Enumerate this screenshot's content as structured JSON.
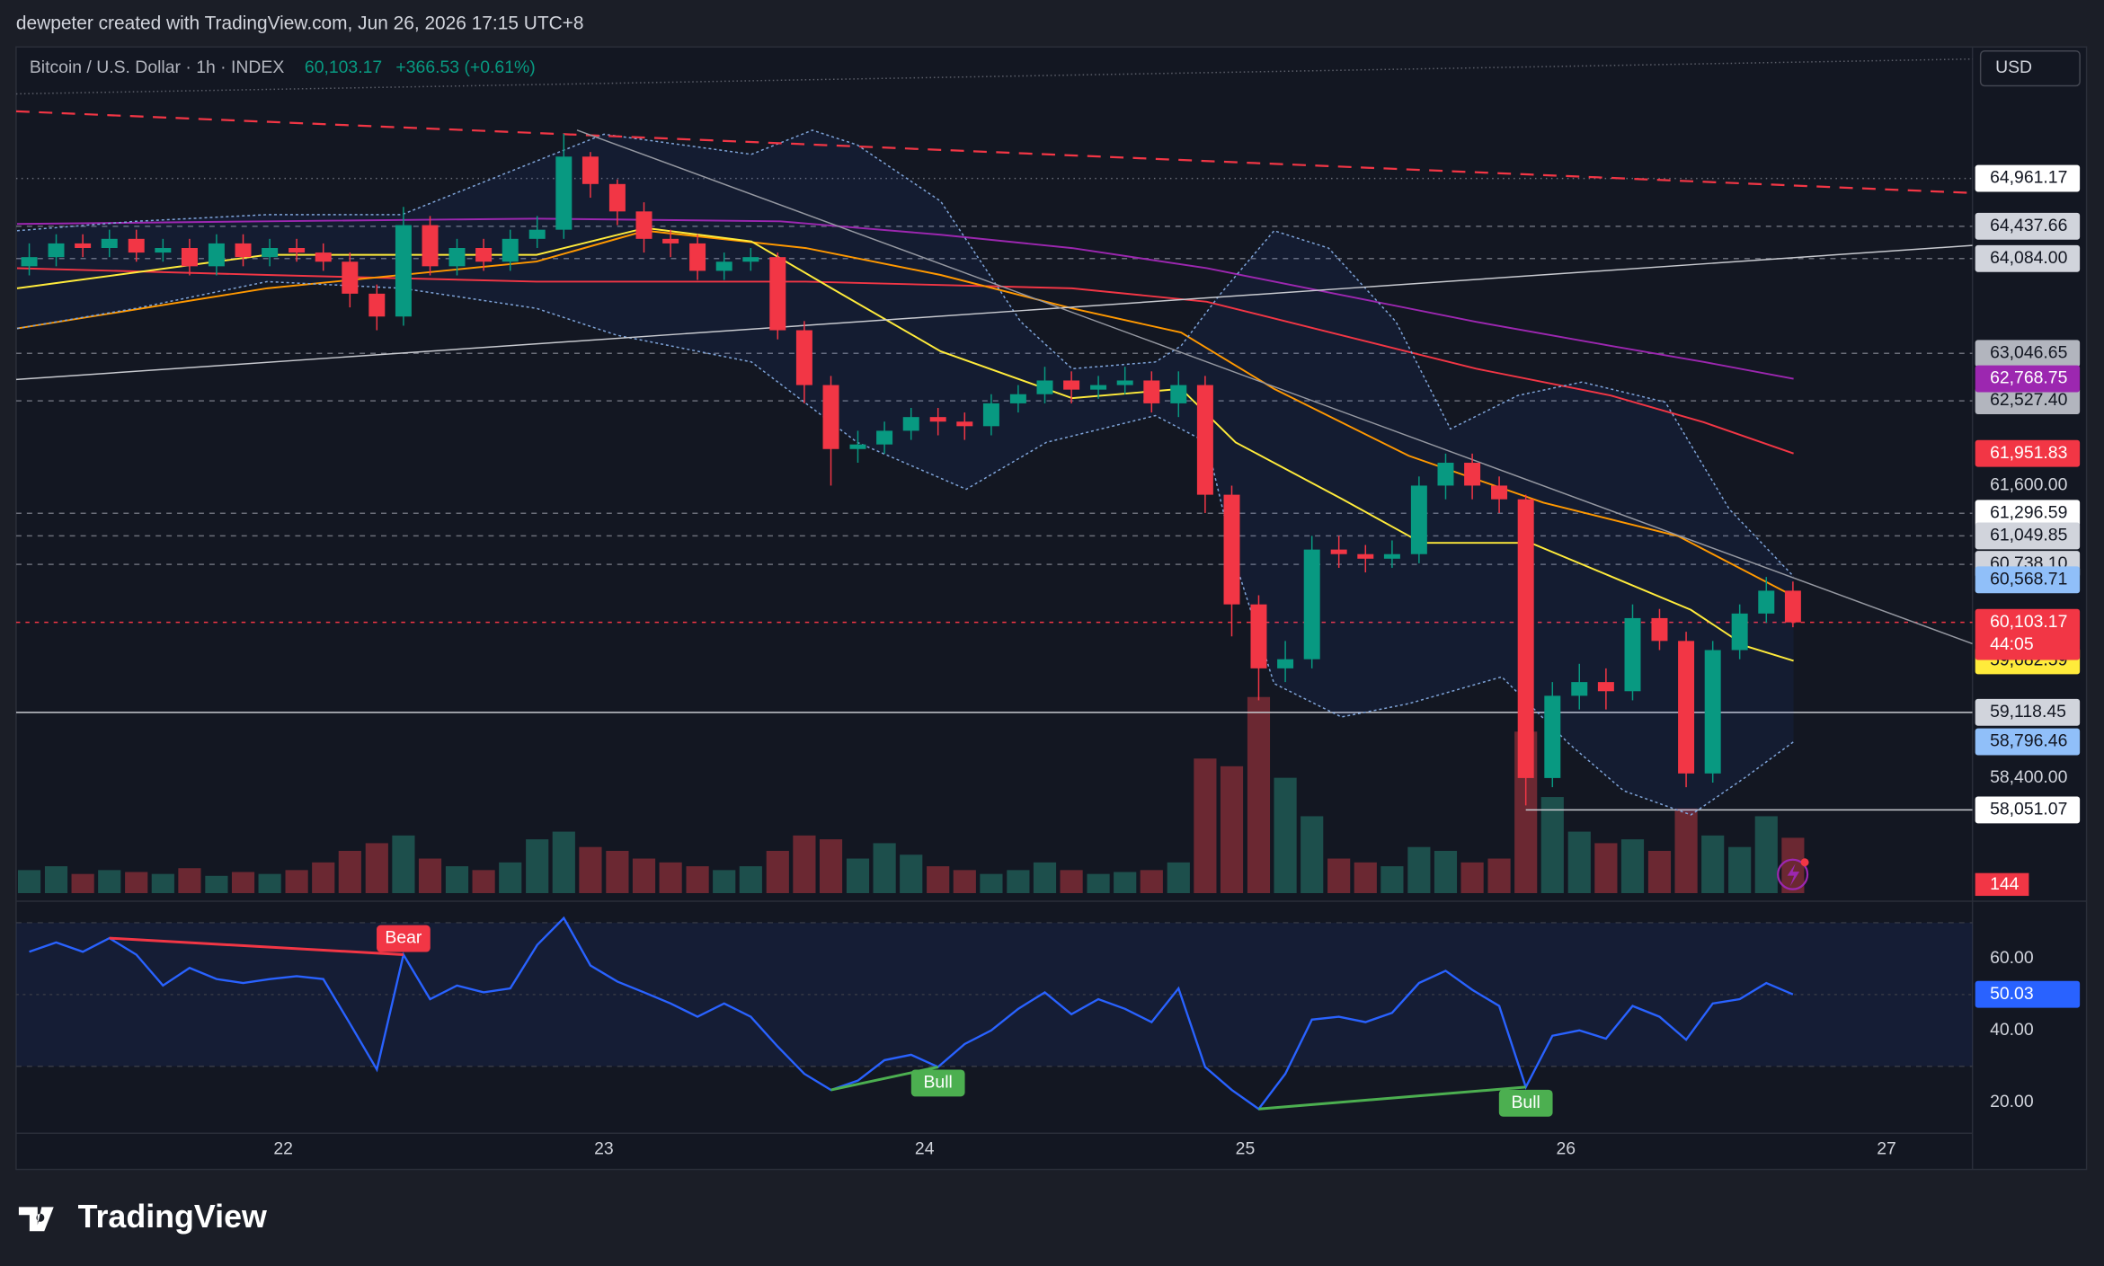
{
  "header": {
    "attribution": "dewpeter created with TradingView.com, Jun 26, 2026 17:15 UTC+8",
    "symbol": "Bitcoin / U.S. Dollar · 1h · INDEX",
    "last": "60,103.17",
    "change": "+366.53 (+0.61%)",
    "currency": "USD"
  },
  "footer": {
    "logo": "TradingView"
  },
  "chart_data": {
    "type": "candlestick",
    "x": [
      21.208,
      21.292,
      21.375,
      21.458,
      21.542,
      21.625,
      21.708,
      21.792,
      21.875,
      21.958,
      22.042,
      22.125,
      22.208,
      22.292,
      22.375,
      22.458,
      22.542,
      22.625,
      22.708,
      22.792,
      22.875,
      22.958,
      23.042,
      23.125,
      23.208,
      23.292,
      23.375,
      23.458,
      23.542,
      23.625,
      23.708,
      23.792,
      23.875,
      23.958,
      24.042,
      24.125,
      24.208,
      24.292,
      24.375,
      24.458,
      24.542,
      24.625,
      24.708,
      24.792,
      24.875,
      24.958,
      25.042,
      25.125,
      25.208,
      25.292,
      25.375,
      25.458,
      25.542,
      25.625,
      25.708,
      25.792,
      25.875,
      25.958,
      26.042,
      26.125,
      26.208,
      26.292,
      26.375,
      26.458,
      26.542,
      26.625,
      26.708
    ],
    "open": [
      64000,
      64100,
      64250,
      64200,
      64300,
      64150,
      64200,
      64000,
      64250,
      64100,
      64200,
      64150,
      64050,
      63700,
      63450,
      64450,
      64000,
      64200,
      64050,
      64300,
      64400,
      65200,
      64900,
      64600,
      64300,
      64250,
      63950,
      64050,
      64100,
      63300,
      62700,
      62000,
      62050,
      62200,
      62350,
      62300,
      62250,
      62500,
      62600,
      62750,
      62650,
      62700,
      62750,
      62500,
      62700,
      61500,
      60300,
      59600,
      59700,
      60900,
      60850,
      60800,
      60850,
      61600,
      61850,
      61600,
      61450,
      58400,
      59300,
      59450,
      59350,
      60150,
      59900,
      58450,
      59800,
      60200,
      60450
    ],
    "high": [
      64250,
      64350,
      64350,
      64400,
      64400,
      64300,
      64300,
      64350,
      64350,
      64300,
      64300,
      64250,
      64150,
      63800,
      64650,
      64550,
      64300,
      64300,
      64400,
      64550,
      65450,
      65250,
      64950,
      64700,
      64400,
      64350,
      64150,
      64200,
      64150,
      63400,
      62800,
      62200,
      62300,
      62450,
      62450,
      62400,
      62600,
      62700,
      62900,
      62850,
      62800,
      62900,
      62850,
      62850,
      62800,
      61600,
      60400,
      59900,
      61050,
      61050,
      60950,
      61000,
      61700,
      61950,
      61950,
      61700,
      61500,
      59450,
      59650,
      59600,
      60300,
      60250,
      60000,
      59900,
      60300,
      60600,
      60550
    ],
    "low": [
      63900,
      64000,
      64100,
      64100,
      64050,
      64050,
      63900,
      63900,
      64000,
      64000,
      64050,
      63950,
      63550,
      63300,
      63350,
      63900,
      63900,
      63950,
      63950,
      64200,
      64300,
      64750,
      64450,
      64150,
      64100,
      63850,
      63850,
      63950,
      63200,
      62500,
      61600,
      61850,
      61950,
      62100,
      62150,
      62100,
      62150,
      62400,
      62500,
      62500,
      62550,
      62600,
      62400,
      62350,
      61300,
      59950,
      59250,
      59450,
      59600,
      60700,
      60650,
      60700,
      60750,
      61450,
      61450,
      61300,
      58100,
      58300,
      59150,
      59150,
      59250,
      59800,
      58300,
      58350,
      59700,
      60100,
      60050
    ],
    "close": [
      64100,
      64250,
      64200,
      64300,
      64150,
      64200,
      64000,
      64250,
      64100,
      64200,
      64150,
      64050,
      63700,
      63450,
      64450,
      64000,
      64200,
      64050,
      64300,
      64400,
      65200,
      64900,
      64600,
      64300,
      64250,
      63950,
      64050,
      64100,
      63300,
      62700,
      62000,
      62050,
      62200,
      62350,
      62300,
      62250,
      62500,
      62600,
      62750,
      62650,
      62700,
      62750,
      62500,
      62700,
      61500,
      60300,
      59600,
      59700,
      60900,
      60850,
      60800,
      60850,
      61600,
      61850,
      61600,
      61450,
      58400,
      59300,
      59450,
      59350,
      60150,
      59900,
      58450,
      59800,
      60200,
      60450,
      60103.17
    ],
    "up_color": "#089981",
    "down_color": "#f23645",
    "xlim": [
      21.167,
      27.268
    ],
    "xticks": [
      22,
      23,
      24,
      25,
      26,
      27
    ],
    "ylim": [
      57140,
      66400
    ],
    "yticks": [
      {
        "value": 61600,
        "label": "61,600.00"
      },
      {
        "value": 58400,
        "label": "58,400.00"
      }
    ],
    "volume": {
      "values": [
        60,
        70,
        50,
        60,
        55,
        50,
        65,
        45,
        55,
        50,
        60,
        80,
        110,
        130,
        150,
        90,
        70,
        60,
        80,
        140,
        160,
        120,
        110,
        90,
        80,
        70,
        60,
        70,
        110,
        150,
        140,
        90,
        130,
        100,
        70,
        60,
        50,
        60,
        80,
        60,
        50,
        55,
        60,
        80,
        350,
        330,
        510,
        300,
        200,
        90,
        80,
        70,
        120,
        110,
        80,
        90,
        420,
        250,
        160,
        130,
        140,
        110,
        220,
        150,
        120,
        200,
        144
      ],
      "y2lim": [
        0,
        2200
      ],
      "up_color": "#1d4f4c",
      "down_color": "#6b2832"
    },
    "overlays": [
      {
        "color": "#9c27b0",
        "style": "solid",
        "x": [
          21.17,
          21.95,
          22.79,
          23.55,
          24.05,
          24.46,
          24.88,
          25.3,
          25.72,
          26.14,
          26.43,
          26.71
        ],
        "values": [
          64463,
          64492,
          64521,
          64492,
          64345,
          64199,
          63979,
          63686,
          63392,
          63129,
          62953,
          62768.75
        ]
      },
      {
        "color": "#f23645",
        "style": "solid",
        "x": [
          21.17,
          21.95,
          22.79,
          23.63,
          24.46,
          24.88,
          25.3,
          25.72,
          26.14,
          26.43,
          26.71
        ],
        "values": [
          63979,
          63905,
          63832,
          63832,
          63759,
          63612,
          63246,
          62879,
          62586,
          62293,
          61951.83
        ]
      },
      {
        "color": "#ff9800",
        "style": "solid",
        "x": [
          21.17,
          21.95,
          22.79,
          23.13,
          23.63,
          24.05,
          24.46,
          24.8,
          25.09,
          25.51,
          25.93,
          26.35,
          26.71
        ],
        "values": [
          63319,
          63759,
          64052,
          64389,
          64199,
          63905,
          63539,
          63275,
          62659,
          61926,
          61413,
          61047,
          60390
        ]
      },
      {
        "color": "#ffeb3b",
        "style": "solid",
        "x": [
          21.17,
          21.95,
          22.79,
          23.13,
          23.46,
          23.71,
          24.05,
          24.46,
          24.8,
          24.97,
          25.3,
          25.55,
          25.89,
          26.14,
          26.39,
          26.56,
          26.71
        ],
        "values": [
          63759,
          64125,
          64125,
          64419,
          64272,
          63759,
          63070,
          62557,
          62659,
          62073,
          61457,
          60973,
          60973,
          60607,
          60240,
          59845,
          59682.59
        ]
      },
      {
        "color": "#7fa4d9",
        "style": "dotted",
        "band": "upper",
        "x": [
          21.17,
          21.54,
          21.95,
          22.37,
          22.79,
          23.0,
          23.46,
          23.65,
          23.79,
          24.05,
          24.3,
          24.46,
          24.72,
          24.8,
          24.92,
          25.09,
          25.26,
          25.47,
          25.64,
          25.85,
          26.05,
          26.31,
          26.51,
          26.71
        ],
        "values": [
          64389,
          64492,
          64565,
          64565,
          65152,
          65445,
          65225,
          65489,
          65328,
          64712,
          63393,
          62879,
          62953,
          63129,
          63686,
          64389,
          64199,
          63393,
          62220,
          62586,
          62733,
          62513,
          61340,
          60607
        ]
      },
      {
        "color": "#7fa4d9",
        "style": "dotted",
        "band": "lower",
        "x": [
          21.17,
          21.54,
          21.95,
          22.37,
          22.79,
          23.04,
          23.46,
          23.79,
          24.13,
          24.38,
          24.72,
          24.88,
          24.97,
          25.09,
          25.3,
          25.51,
          25.8,
          26.01,
          26.18,
          26.39,
          26.56,
          26.71
        ],
        "values": [
          63319,
          63539,
          63832,
          63759,
          63539,
          63246,
          62953,
          62073,
          61560,
          62073,
          62366,
          62073,
          60754,
          59434,
          59068,
          59214,
          59507,
          58774,
          58261,
          57997,
          58408,
          58796.46
        ]
      }
    ],
    "price_labels": [
      {
        "value": 64961.17,
        "label": "64,961.17",
        "color": "#ffffff",
        "text_color": "#131722",
        "line": "dotted"
      },
      {
        "value": 64437.66,
        "label": "64,437.66",
        "color": "#d1d4dc",
        "text_color": "#131722",
        "line": "dashed"
      },
      {
        "value": 64084,
        "label": "64,084.00",
        "color": "#d1d4dc",
        "text_color": "#131722",
        "line": "dashed"
      },
      {
        "value": 63046.65,
        "label": "63,046.65",
        "color": "#b2b5be",
        "text_color": "#131722",
        "line": "dashed"
      },
      {
        "value": 62527.4,
        "label": "62,527.40",
        "color": "#b2b5be",
        "text_color": "#131722",
        "line": "dashed"
      },
      {
        "value": 62768.75,
        "label": "62,768.75",
        "color": "#9c27b0",
        "text_color": "#ffffff"
      },
      {
        "value": 61951.83,
        "label": "61,951.83",
        "color": "#f23645",
        "text_color": "#ffffff"
      },
      {
        "value": 61296.59,
        "label": "61,296.59",
        "color": "#ffffff",
        "text_color": "#131722",
        "line": "dashed"
      },
      {
        "value": 61049.85,
        "label": "61,049.85",
        "color": "#d1d4dc",
        "text_color": "#131722",
        "line": "dashed"
      },
      {
        "value": 60738.1,
        "label": "60,738.10",
        "color": "#d1d4dc",
        "text_color": "#131722",
        "line": "dashed"
      },
      {
        "value": 60568.71,
        "label": "60,568.71",
        "color": "#90bff9",
        "text_color": "#131722"
      },
      {
        "value": 59682.59,
        "label": "59,682.59",
        "color": "#ffeb3b",
        "text_color": "#131722"
      },
      {
        "value": 60103.17,
        "label": "60,103.17",
        "color": "#f23645",
        "text_color": "#ffffff",
        "line": "dashed-red"
      },
      {
        "value": 59118.45,
        "label": "59,118.45",
        "color": "#d1d4dc",
        "text_color": "#131722",
        "line": "solid"
      },
      {
        "value": 58796.46,
        "label": "58,796.46",
        "color": "#90bff9",
        "text_color": "#131722"
      },
      {
        "value": 58051.07,
        "label": "58,051.07",
        "color": "#ffffff",
        "text_color": "#131722",
        "line": "solid-right"
      }
    ],
    "countdown": "44:05",
    "rsi": {
      "values": [
        61.9,
        64.5,
        61.9,
        65.7,
        61.1,
        52.5,
        57.4,
        54.3,
        53.2,
        54.3,
        55.1,
        54.3,
        41.9,
        29.1,
        61.1,
        48.7,
        52.5,
        50.6,
        51.7,
        63.8,
        71.3,
        58.1,
        53.6,
        50.6,
        47.5,
        43.8,
        47.5,
        43.8,
        35.5,
        27.9,
        23.4,
        26.0,
        31.7,
        33.2,
        29.8,
        36.2,
        40.0,
        46.0,
        50.6,
        44.5,
        48.7,
        46.0,
        42.3,
        51.7,
        29.8,
        23.4,
        18.1,
        27.9,
        43.0,
        43.8,
        42.3,
        44.9,
        53.2,
        56.6,
        51.3,
        46.8,
        24.2,
        38.5,
        40.0,
        37.7,
        46.8,
        43.8,
        37.4,
        47.5,
        48.7,
        53.2,
        50.03
      ],
      "color": "#2962ff",
      "ylim": [
        2,
        73
      ],
      "band": [
        30,
        70
      ],
      "midline": 50,
      "yticks": [
        {
          "value": 60,
          "label": "60.00"
        },
        {
          "value": 40,
          "label": "40.00"
        },
        {
          "value": 20,
          "label": "20.00"
        }
      ]
    },
    "annotations": [
      {
        "text": "Bear",
        "from": 21.458,
        "to": 22.375,
        "color": "#f23645",
        "side": "above"
      },
      {
        "text": "Bull",
        "from": 23.708,
        "to": 24.042,
        "color": "#4caf50",
        "side": "below"
      },
      {
        "text": "Bull",
        "from": 25.042,
        "to": 25.875,
        "color": "#4caf50",
        "side": "below"
      }
    ]
  }
}
